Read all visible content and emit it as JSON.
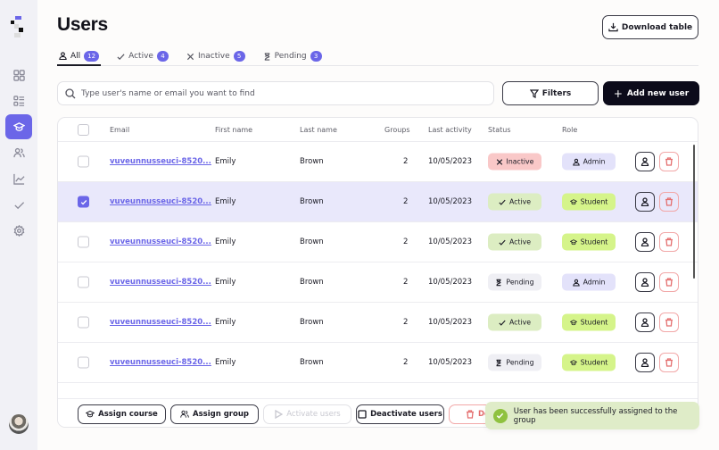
{
  "sidebar": {
    "items": [
      {
        "name": "dashboard",
        "icon": "grid-icon",
        "active": false
      },
      {
        "name": "lists",
        "icon": "list-icon",
        "active": false
      },
      {
        "name": "courses",
        "icon": "graduation-cap-icon",
        "active": true
      },
      {
        "name": "users",
        "icon": "users-icon",
        "active": false
      },
      {
        "name": "analytics",
        "icon": "chart-icon",
        "active": false
      },
      {
        "name": "tasks",
        "icon": "check-icon",
        "active": false
      },
      {
        "name": "settings",
        "icon": "gear-icon",
        "active": false
      }
    ],
    "accent": "#6b66e8"
  },
  "header": {
    "title": "Users",
    "download_label": "Download table"
  },
  "tabs": [
    {
      "label": "All",
      "count": "12",
      "icon": "user-icon",
      "active": true
    },
    {
      "label": "Active",
      "count": "4",
      "icon": "check-icon",
      "active": false
    },
    {
      "label": "Inactive",
      "count": "5",
      "icon": "x-icon",
      "active": false
    },
    {
      "label": "Pending",
      "count": "3",
      "icon": "hourglass-icon",
      "active": false
    }
  ],
  "search": {
    "placeholder": "Type user's name or email you want to find",
    "value": ""
  },
  "toolbar": {
    "filters_label": "Filters",
    "add_label": "Add new user"
  },
  "table": {
    "columns": [
      "Email",
      "First name",
      "Last name",
      "Groups",
      "Last activity",
      "Status",
      "Role"
    ],
    "rows": [
      {
        "checked": false,
        "email": "vuveunnusseuci-8520...",
        "first": "Emily",
        "last": "Brown",
        "groups": "2",
        "activity": "10/05/2023",
        "status": "Inactive",
        "role": "Admin"
      },
      {
        "checked": true,
        "email": "vuveunnusseuci-8520...",
        "first": "Emily",
        "last": "Brown",
        "groups": "2",
        "activity": "10/05/2023",
        "status": "Active",
        "role": "Student"
      },
      {
        "checked": false,
        "email": "vuveunnusseuci-8520...",
        "first": "Emily",
        "last": "Brown",
        "groups": "2",
        "activity": "10/05/2023",
        "status": "Active",
        "role": "Student"
      },
      {
        "checked": false,
        "email": "vuveunnusseuci-8520...",
        "first": "Emily",
        "last": "Brown",
        "groups": "2",
        "activity": "10/05/2023",
        "status": "Pending",
        "role": "Admin"
      },
      {
        "checked": false,
        "email": "vuveunnusseuci-8520...",
        "first": "Emily",
        "last": "Brown",
        "groups": "2",
        "activity": "10/05/2023",
        "status": "Active",
        "role": "Student"
      },
      {
        "checked": false,
        "email": "vuveunnusseuci-8520...",
        "first": "Emily",
        "last": "Brown",
        "groups": "2",
        "activity": "10/05/2023",
        "status": "Pending",
        "role": "Student"
      }
    ]
  },
  "bulk_actions": {
    "assign_course": "Assign course",
    "assign_group": "Assign group",
    "activate": "Activate users",
    "deactivate": "Deactivate users",
    "delete": "De"
  },
  "toast": {
    "message": "User has been successfully assigned to the group"
  }
}
